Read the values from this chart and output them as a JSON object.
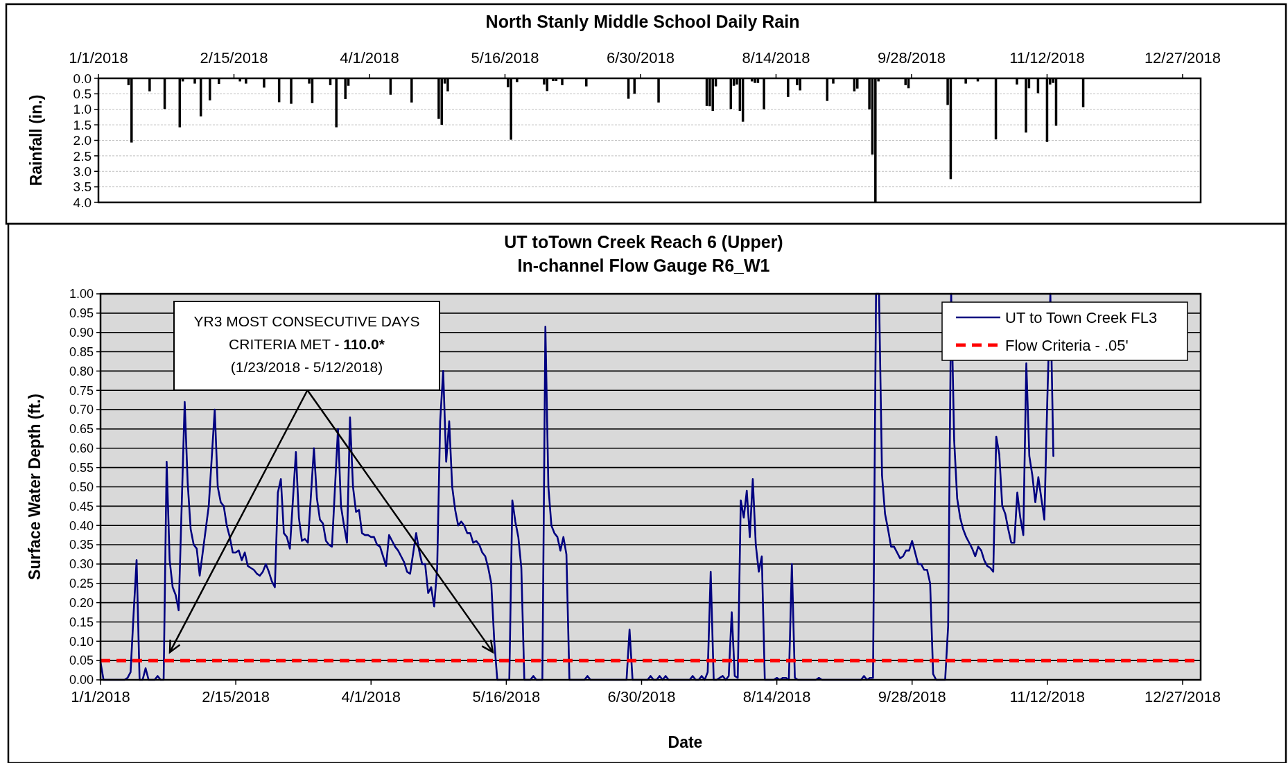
{
  "chart_data": [
    {
      "type": "bar",
      "title": "North Stanly Middle School Daily Rain",
      "ylabel": "Rainfall (in.)",
      "xlim": [
        "2018-01-01",
        "2019-01-02"
      ],
      "xticks": [
        {
          "value": "2018-01-01",
          "label": "1/1/2018"
        },
        {
          "value": "2018-02-15",
          "label": "2/15/2018"
        },
        {
          "value": "2018-04-01",
          "label": "4/1/2018"
        },
        {
          "value": "2018-05-16",
          "label": "5/16/2018"
        },
        {
          "value": "2018-06-30",
          "label": "6/30/2018"
        },
        {
          "value": "2018-08-14",
          "label": "8/14/2018"
        },
        {
          "value": "2018-09-28",
          "label": "9/28/2018"
        },
        {
          "value": "2018-11-12",
          "label": "11/12/2018"
        },
        {
          "value": "2018-12-27",
          "label": "12/27/2018"
        }
      ],
      "ylim": [
        4,
        0
      ],
      "yticks": [
        {
          "value": 0,
          "label": "0.0"
        },
        {
          "value": 0.5,
          "label": "0.5"
        },
        {
          "value": 1,
          "label": "1.0"
        },
        {
          "value": 1.5,
          "label": "1.5"
        },
        {
          "value": 2,
          "label": "2.0"
        },
        {
          "value": 2.5,
          "label": "2.5"
        },
        {
          "value": 3,
          "label": "3.0"
        },
        {
          "value": 3.5,
          "label": "3.5"
        },
        {
          "value": 4,
          "label": "4.0"
        }
      ],
      "grid": "y",
      "series": [
        {
          "color": "#000000",
          "x": [
            "2018-01-11",
            "2018-01-12",
            "2018-01-18",
            "2018-01-23",
            "2018-01-28",
            "2018-01-29",
            "2018-02-02",
            "2018-02-04",
            "2018-02-07",
            "2018-02-10",
            "2018-02-17",
            "2018-02-19",
            "2018-02-25",
            "2018-03-02",
            "2018-03-06",
            "2018-03-12",
            "2018-03-13",
            "2018-03-19",
            "2018-03-21",
            "2018-03-24",
            "2018-03-25",
            "2018-04-08",
            "2018-04-15",
            "2018-04-24",
            "2018-04-25",
            "2018-04-26",
            "2018-04-27",
            "2018-05-17",
            "2018-05-18",
            "2018-05-20",
            "2018-05-29",
            "2018-05-30",
            "2018-06-01",
            "2018-06-02",
            "2018-06-04",
            "2018-06-12",
            "2018-06-26",
            "2018-06-28",
            "2018-07-06",
            "2018-07-22",
            "2018-07-23",
            "2018-07-24",
            "2018-07-25",
            "2018-07-30",
            "2018-07-31",
            "2018-08-01",
            "2018-08-02",
            "2018-08-03",
            "2018-08-06",
            "2018-08-07",
            "2018-08-08",
            "2018-08-10",
            "2018-08-18",
            "2018-08-21",
            "2018-08-22",
            "2018-08-31",
            "2018-09-02",
            "2018-09-09",
            "2018-09-10",
            "2018-09-14",
            "2018-09-15",
            "2018-09-16",
            "2018-09-17",
            "2018-09-26",
            "2018-09-27",
            "2018-10-10",
            "2018-10-11",
            "2018-10-16",
            "2018-10-20",
            "2018-10-26",
            "2018-11-02",
            "2018-11-05",
            "2018-11-06",
            "2018-11-09",
            "2018-11-12",
            "2018-11-13",
            "2018-11-14",
            "2018-11-15",
            "2018-11-24"
          ],
          "values": [
            0.22,
            2.07,
            0.42,
            0.99,
            1.58,
            0.1,
            0.17,
            1.23,
            0.71,
            0.18,
            0.1,
            0.17,
            0.3,
            0.77,
            0.82,
            0.17,
            0.8,
            0.22,
            1.58,
            0.67,
            0.24,
            0.53,
            0.78,
            1.31,
            1.5,
            0.17,
            0.42,
            0.29,
            1.98,
            0.12,
            0.2,
            0.41,
            0.09,
            0.09,
            0.22,
            0.26,
            0.66,
            0.5,
            0.78,
            0.89,
            0.9,
            1.05,
            0.26,
            0.99,
            0.24,
            0.2,
            1.05,
            1.4,
            0.1,
            0.15,
            0.15,
            1.0,
            0.6,
            0.22,
            0.39,
            0.73,
            0.17,
            0.42,
            0.33,
            1.0,
            2.46,
            4.0,
            0.1,
            0.22,
            0.32,
            0.86,
            3.25,
            0.17,
            0.1,
            1.97,
            0.2,
            1.75,
            0.32,
            0.48,
            2.05,
            0.2,
            0.15,
            1.53,
            0.93
          ]
        }
      ]
    },
    {
      "type": "line",
      "title": "UT toTown Creek Reach 6 (Upper)",
      "subtitle": "In-channel Flow Gauge R6_W1",
      "xlabel": "Date",
      "ylabel": "Surface Water Depth (ft.)",
      "annotations": [
        "YR3 MOST CONSECUTIVE DAYS CRITERIA MET - 110.0* (1/23/2018 - 5/12/2018)"
      ],
      "xlim": [
        "2018-01-01",
        "2019-01-02"
      ],
      "xticks": [
        {
          "value": "2018-01-01",
          "label": "1/1/2018"
        },
        {
          "value": "2018-02-15",
          "label": "2/15/2018"
        },
        {
          "value": "2018-04-01",
          "label": "4/1/2018"
        },
        {
          "value": "2018-05-16",
          "label": "5/16/2018"
        },
        {
          "value": "2018-06-30",
          "label": "6/30/2018"
        },
        {
          "value": "2018-08-14",
          "label": "8/14/2018"
        },
        {
          "value": "2018-09-28",
          "label": "9/28/2018"
        },
        {
          "value": "2018-11-12",
          "label": "11/12/2018"
        },
        {
          "value": "2018-12-27",
          "label": "12/27/2018"
        }
      ],
      "ylim": [
        0,
        1
      ],
      "yticks": [
        {
          "value": 0,
          "label": "0.00"
        },
        {
          "value": 0.05,
          "label": "0.05"
        },
        {
          "value": 0.1,
          "label": "0.10"
        },
        {
          "value": 0.15,
          "label": "0.15"
        },
        {
          "value": 0.2,
          "label": "0.20"
        },
        {
          "value": 0.25,
          "label": "0.25"
        },
        {
          "value": 0.3,
          "label": "0.30"
        },
        {
          "value": 0.35,
          "label": "0.35"
        },
        {
          "value": 0.4,
          "label": "0.40"
        },
        {
          "value": 0.45,
          "label": "0.45"
        },
        {
          "value": 0.5,
          "label": "0.50"
        },
        {
          "value": 0.55,
          "label": "0.55"
        },
        {
          "value": 0.6,
          "label": "0.60"
        },
        {
          "value": 0.65,
          "label": "0.65"
        },
        {
          "value": 0.7,
          "label": "0.70"
        },
        {
          "value": 0.75,
          "label": "0.75"
        },
        {
          "value": 0.8,
          "label": "0.80"
        },
        {
          "value": 0.85,
          "label": "0.85"
        },
        {
          "value": 0.9,
          "label": "0.90"
        },
        {
          "value": 0.95,
          "label": "0.95"
        },
        {
          "value": 1,
          "label": "1.00"
        }
      ],
      "grid": "y",
      "legend": "top right",
      "ref_lines": [
        {
          "axis": "y",
          "value": 0.05,
          "label": "Flow Criteria - .05'",
          "color": "#ff0000",
          "line_style": "dashed"
        }
      ],
      "series": [
        {
          "name": "UT to Town Creek FL3",
          "color": "#000080",
          "x": [
            "2018-01-01",
            "2018-01-02",
            "2018-01-09",
            "2018-01-10",
            "2018-01-11",
            "2018-01-12",
            "2018-01-13",
            "2018-01-14",
            "2018-01-15",
            "2018-01-16",
            "2018-01-17",
            "2018-01-19",
            "2018-01-20",
            "2018-01-21",
            "2018-01-22",
            "2018-01-23",
            "2018-01-24",
            "2018-01-25",
            "2018-01-26",
            "2018-01-27",
            "2018-01-28",
            "2018-01-29",
            "2018-01-30",
            "2018-01-31",
            "2018-02-01",
            "2018-02-02",
            "2018-02-03",
            "2018-02-04",
            "2018-02-06",
            "2018-02-07",
            "2018-02-08",
            "2018-02-09",
            "2018-02-10",
            "2018-02-11",
            "2018-02-12",
            "2018-02-13",
            "2018-02-14",
            "2018-02-15",
            "2018-02-16",
            "2018-02-17",
            "2018-02-18",
            "2018-02-19",
            "2018-02-20",
            "2018-02-21",
            "2018-02-22",
            "2018-02-23",
            "2018-02-24",
            "2018-02-25",
            "2018-02-26",
            "2018-02-27",
            "2018-02-28",
            "2018-03-01",
            "2018-03-02",
            "2018-03-03",
            "2018-03-04",
            "2018-03-05",
            "2018-03-07",
            "2018-03-08",
            "2018-03-09",
            "2018-03-10",
            "2018-03-11",
            "2018-03-12",
            "2018-03-13",
            "2018-03-14",
            "2018-03-15",
            "2018-03-16",
            "2018-03-17",
            "2018-03-18",
            "2018-03-19",
            "2018-03-20",
            "2018-03-21",
            "2018-03-22",
            "2018-03-23",
            "2018-03-24",
            "2018-03-25",
            "2018-03-26",
            "2018-03-27",
            "2018-03-28",
            "2018-03-29",
            "2018-03-30",
            "2018-03-31",
            "2018-04-01",
            "2018-04-02",
            "2018-04-03",
            "2018-04-04",
            "2018-04-05",
            "2018-04-06",
            "2018-04-07",
            "2018-04-08",
            "2018-04-09",
            "2018-04-10",
            "2018-04-11",
            "2018-04-12",
            "2018-04-13",
            "2018-04-14",
            "2018-04-16",
            "2018-04-17",
            "2018-04-18",
            "2018-04-19",
            "2018-04-20",
            "2018-04-21",
            "2018-04-22",
            "2018-04-23",
            "2018-04-24",
            "2018-04-25",
            "2018-04-26",
            "2018-04-27",
            "2018-04-28",
            "2018-04-29",
            "2018-04-30",
            "2018-05-01",
            "2018-05-02",
            "2018-05-03",
            "2018-05-04",
            "2018-05-05",
            "2018-05-06",
            "2018-05-07",
            "2018-05-08",
            "2018-05-09",
            "2018-05-10",
            "2018-05-11",
            "2018-05-12",
            "2018-05-13",
            "2018-05-16",
            "2018-05-17",
            "2018-05-18",
            "2018-05-19",
            "2018-05-20",
            "2018-05-21",
            "2018-05-22",
            "2018-05-24",
            "2018-05-25",
            "2018-05-26",
            "2018-05-28",
            "2018-05-29",
            "2018-05-30",
            "2018-05-31",
            "2018-06-01",
            "2018-06-02",
            "2018-06-03",
            "2018-06-04",
            "2018-06-05",
            "2018-06-06",
            "2018-06-11",
            "2018-06-12",
            "2018-06-13",
            "2018-06-25",
            "2018-06-26",
            "2018-06-27",
            "2018-07-02",
            "2018-07-03",
            "2018-07-04",
            "2018-07-05",
            "2018-07-06",
            "2018-07-07",
            "2018-07-08",
            "2018-07-09",
            "2018-07-16",
            "2018-07-17",
            "2018-07-18",
            "2018-07-19",
            "2018-07-20",
            "2018-07-21",
            "2018-07-22",
            "2018-07-23",
            "2018-07-24",
            "2018-07-25",
            "2018-07-26",
            "2018-07-27",
            "2018-07-28",
            "2018-07-29",
            "2018-07-30",
            "2018-07-31",
            "2018-08-01",
            "2018-08-02",
            "2018-08-03",
            "2018-08-04",
            "2018-08-05",
            "2018-08-06",
            "2018-08-07",
            "2018-08-08",
            "2018-08-09",
            "2018-08-10",
            "2018-08-13",
            "2018-08-14",
            "2018-08-15",
            "2018-08-16",
            "2018-08-17",
            "2018-08-18",
            "2018-08-19",
            "2018-08-20",
            "2018-08-21",
            "2018-08-27",
            "2018-08-28",
            "2018-08-29",
            "2018-09-11",
            "2018-09-12",
            "2018-09-13",
            "2018-09-14",
            "2018-09-15",
            "2018-09-16",
            "2018-09-17",
            "2018-09-18",
            "2018-09-19",
            "2018-09-20",
            "2018-09-21",
            "2018-09-22",
            "2018-09-23",
            "2018-09-24",
            "2018-09-25",
            "2018-09-26",
            "2018-09-27",
            "2018-09-28",
            "2018-09-29",
            "2018-09-30",
            "2018-10-01",
            "2018-10-02",
            "2018-10-03",
            "2018-10-04",
            "2018-10-05",
            "2018-10-06",
            "2018-10-09",
            "2018-10-10",
            "2018-10-11",
            "2018-10-12",
            "2018-10-13",
            "2018-10-14",
            "2018-10-15",
            "2018-10-16",
            "2018-10-17",
            "2018-10-18",
            "2018-10-19",
            "2018-10-20",
            "2018-10-21",
            "2018-10-22",
            "2018-10-23",
            "2018-10-24",
            "2018-10-25",
            "2018-10-26",
            "2018-10-27",
            "2018-10-28",
            "2018-10-29",
            "2018-10-30",
            "2018-10-31",
            "2018-11-01",
            "2018-11-02",
            "2018-11-03",
            "2018-11-04",
            "2018-11-05",
            "2018-11-06",
            "2018-11-07",
            "2018-11-08",
            "2018-11-09",
            "2018-11-10",
            "2018-11-11",
            "2018-11-12",
            "2018-11-13",
            "2018-11-14"
          ],
          "values": [
            0.046,
            0,
            0,
            0.005,
            0.02,
            0.17,
            0.31,
            0,
            0,
            0.03,
            0,
            0,
            0.01,
            0,
            0,
            0.565,
            0.31,
            0.24,
            0.22,
            0.18,
            0.45,
            0.72,
            0.51,
            0.39,
            0.35,
            0.34,
            0.27,
            null,
            0.45,
            null,
            0.7,
            0.5,
            0.46,
            0.45,
            0.4,
            0.37,
            0.33,
            0.33,
            0.335,
            0.31,
            0.33,
            0.295,
            0.29,
            0.285,
            0.275,
            0.27,
            0.28,
            0.3,
            0.28,
            0.255,
            0.24,
            0.485,
            0.52,
            0.38,
            0.37,
            0.34,
            0.59,
            0.42,
            0.36,
            0.365,
            0.355,
            null,
            0.6,
            0.47,
            0.415,
            0.405,
            0.36,
            0.35,
            0.345,
            null,
            0.65,
            0.45,
            0.4,
            0.355,
            0.68,
            0.5,
            0.435,
            0.44,
            0.38,
            0.375,
            0.375,
            0.37,
            0.37,
            0.35,
            0.345,
            0.32,
            0.295,
            0.375,
            0.36,
            0.345,
            0.335,
            0.32,
            0.305,
            0.28,
            0.275,
            0.38,
            0.335,
            0.3,
            0.3,
            0.225,
            0.24,
            0.19,
            0.29,
            0.67,
            0.8,
            0.565,
            0.67,
            0.5,
            0.44,
            0.4,
            0.41,
            0.4,
            0.38,
            0.38,
            0.355,
            0.36,
            0.35,
            0.33,
            0.32,
            0.29,
            0.25,
            0.1,
            0,
            0,
            0,
            0.465,
            0.41,
            0.37,
            0.29,
            0,
            0,
            0.01,
            0,
            0,
            0.915,
            0.5,
            0.4,
            0.38,
            0.37,
            0.335,
            0.37,
            0.325,
            0,
            0,
            0.01,
            0,
            0,
            0.13,
            0,
            0,
            0.01,
            0,
            0,
            0.01,
            0,
            0.01,
            0,
            0,
            0.01,
            0,
            0,
            0.01,
            0,
            0.02,
            0.28,
            0,
            0,
            0.005,
            0.01,
            0,
            0.01,
            0.175,
            0.01,
            0.005,
            0.465,
            0.42,
            0.49,
            0.37,
            0.52,
            0.35,
            0.28,
            0.32,
            0,
            0,
            0.005,
            0,
            0.005,
            0.005,
            0,
            0.3,
            0.005,
            0,
            0,
            0.005,
            0,
            0,
            0.01,
            0,
            0.005,
            0.005,
            1,
            1,
            0.53,
            0.43,
            0.39,
            0.345,
            0.345,
            0.33,
            0.315,
            0.32,
            0.335,
            0.335,
            0.36,
            0.33,
            0.3,
            0.3,
            0.285,
            0.285,
            0.25,
            0.015,
            0,
            0,
            0.14,
            1,
            0.62,
            0.47,
            0.42,
            0.39,
            0.37,
            0.355,
            0.34,
            0.32,
            0.345,
            0.335,
            0.31,
            0.295,
            0.29,
            0.28,
            0.63,
            0.585,
            0.45,
            0.43,
            0.39,
            0.355,
            0.355,
            0.485,
            0.42,
            0.375,
            0.82,
            0.58,
            0.53,
            0.46,
            0.525,
            0.47,
            0.415,
            0.73,
            1,
            0.58
          ]
        }
      ]
    }
  ]
}
